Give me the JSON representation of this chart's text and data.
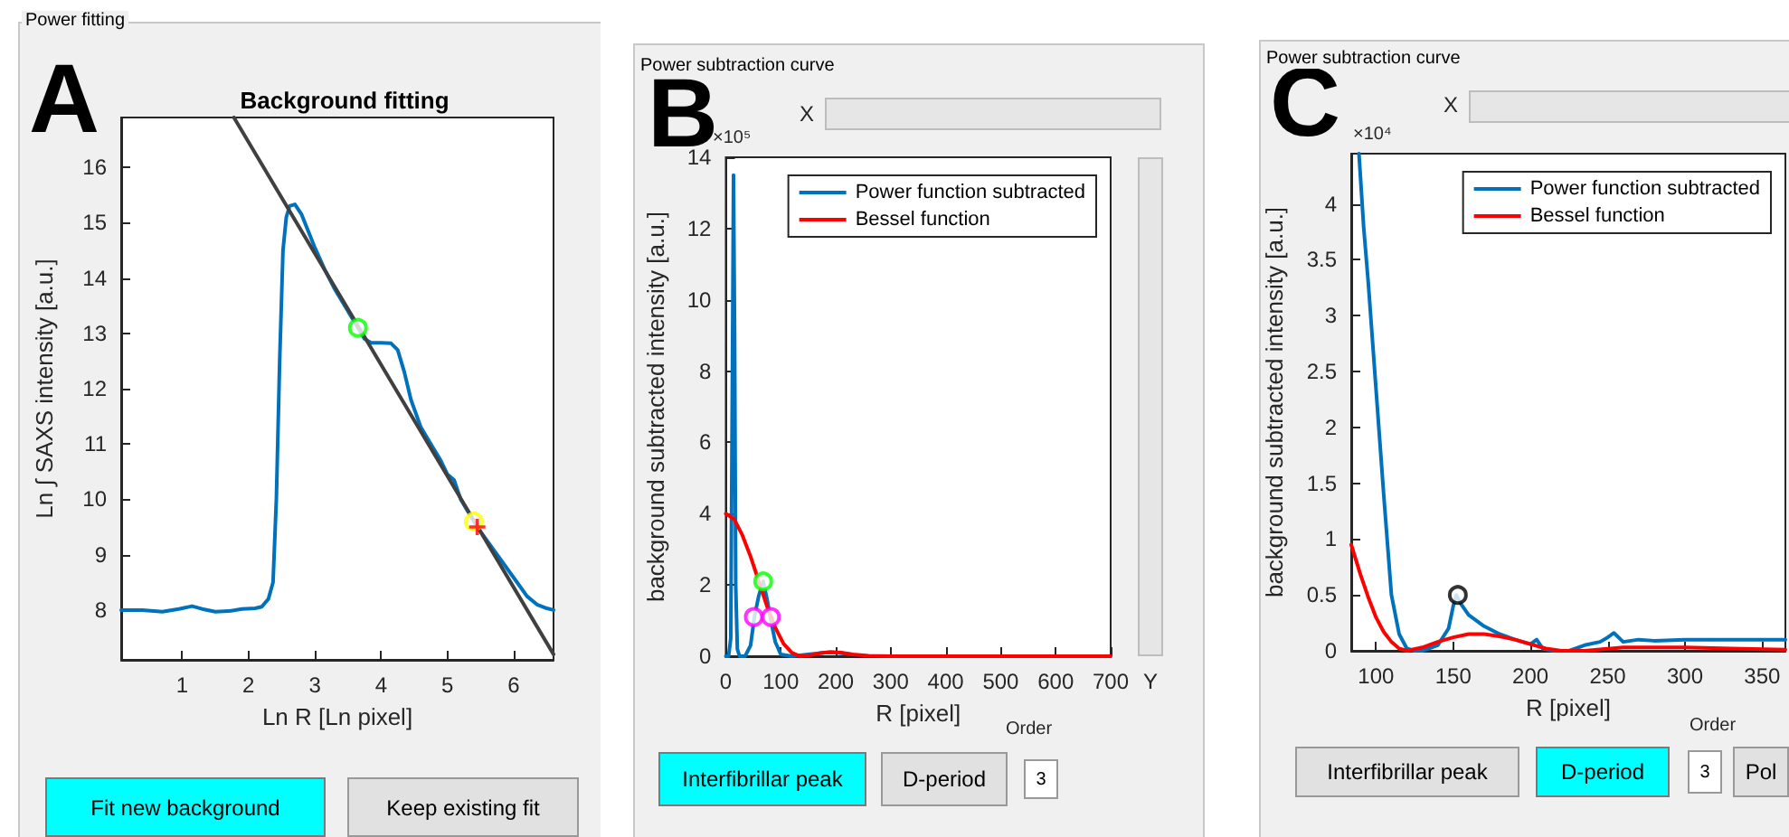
{
  "chart_data": [
    {
      "type": "line",
      "title": "Background fitting",
      "xlabel": "Ln R [Ln pixel]",
      "ylabel": "Ln ∫ SAXS intensity [a.u.]",
      "xlim": [
        0.08,
        6.6
      ],
      "ylim": [
        7.1,
        16.9
      ],
      "xticks": [
        1,
        2,
        3,
        4,
        5,
        6
      ],
      "yticks": [
        8,
        9,
        10,
        11,
        12,
        13,
        14,
        15,
        16
      ],
      "grid": false,
      "legend": false,
      "marker": "none",
      "annotations": [
        "A",
        "Power fitting",
        "Fit new background",
        "Keep existing fit"
      ],
      "series": [
        {
          "color": "#0072bd",
          "x": [
            0.08,
            0.4,
            0.7,
            0.95,
            1.15,
            1.3,
            1.5,
            1.7,
            1.9,
            2.1,
            2.2,
            2.3,
            2.37,
            2.42,
            2.47,
            2.52,
            2.57,
            2.62,
            2.7,
            2.8,
            2.9,
            3.0,
            3.15,
            3.3,
            3.5,
            3.65,
            3.75,
            3.85,
            4.0,
            4.15,
            4.25,
            4.35,
            4.45,
            4.6,
            4.75,
            4.9,
            5.0,
            5.1,
            5.2,
            5.3,
            5.45,
            5.6,
            5.75,
            5.9,
            6.05,
            6.2,
            6.35,
            6.5,
            6.6
          ],
          "values": [
            8.0,
            8.0,
            7.97,
            8.02,
            8.07,
            8.02,
            7.97,
            7.98,
            8.02,
            8.03,
            8.06,
            8.2,
            8.5,
            10.0,
            12.5,
            14.5,
            15.1,
            15.3,
            15.33,
            15.15,
            14.85,
            14.55,
            14.15,
            13.8,
            13.4,
            13.1,
            12.9,
            12.83,
            12.83,
            12.82,
            12.7,
            12.3,
            11.8,
            11.3,
            11.0,
            10.7,
            10.45,
            10.35,
            10.0,
            9.8,
            9.5,
            9.25,
            9.0,
            8.75,
            8.5,
            8.25,
            8.1,
            8.03,
            8.0
          ]
        },
        {
          "color": "#404040",
          "x": [
            1.78,
            6.6
          ],
          "values": [
            16.9,
            7.2
          ]
        },
        {
          "type": "scatter",
          "marker": "circle",
          "color": "#00ff00",
          "x": [
            3.65
          ],
          "values": [
            13.1
          ]
        },
        {
          "type": "scatter",
          "marker": "circle",
          "color": "#ffff00",
          "x": [
            5.4
          ],
          "values": [
            9.6
          ]
        },
        {
          "type": "scatter",
          "marker": "cross",
          "color": "#ff0000",
          "x": [
            5.45
          ],
          "values": [
            9.5
          ]
        }
      ]
    },
    {
      "type": "line",
      "xlabel": "R [pixel]",
      "ylabel": "background subtracted intensity [a.u.]",
      "xlim": [
        0,
        700
      ],
      "ylim": [
        0,
        14
      ],
      "xticks": [
        0,
        100,
        200,
        300,
        400,
        500,
        600,
        700
      ],
      "yticks": [
        0,
        2,
        4,
        6,
        8,
        10,
        12,
        14
      ],
      "grid": false,
      "legend": "top right",
      "marker": "none",
      "annotations": [
        "B",
        "Power subtraction curve",
        "X",
        "Y",
        "×10⁵",
        "Interfibrillar peak",
        "D-period",
        "Order",
        "3"
      ],
      "series": [
        {
          "name": "Power function subtracted",
          "color": "#0072bd",
          "x": [
            0,
            5,
            9,
            12,
            14,
            16,
            18,
            21,
            25,
            35,
            45,
            52,
            60,
            68,
            75,
            82,
            90,
            100,
            120,
            150,
            180,
            200,
            230
          ],
          "values": [
            0,
            0,
            0.5,
            8,
            13.5,
            9,
            2,
            0.2,
            0,
            0,
            0.3,
            1.1,
            1.7,
            2.1,
            1.6,
            1.0,
            0.4,
            0.05,
            0,
            0.05,
            0.1,
            0.1,
            0.05
          ]
        },
        {
          "name": "Bessel function",
          "color": "#ff0000",
          "x": [
            0,
            15,
            30,
            45,
            60,
            75,
            90,
            105,
            120,
            135,
            150,
            170,
            190,
            210,
            230,
            260,
            300,
            400,
            500,
            600,
            700
          ],
          "values": [
            4,
            3.85,
            3.4,
            2.8,
            2.1,
            1.4,
            0.8,
            0.35,
            0.1,
            0,
            0.02,
            0.08,
            0.12,
            0.1,
            0.05,
            0.01,
            0,
            0,
            0,
            0,
            0
          ]
        },
        {
          "type": "scatter",
          "marker": "circle",
          "color": "#00ff00",
          "x": [
            68
          ],
          "values": [
            2.1
          ]
        },
        {
          "type": "scatter",
          "marker": "circle",
          "color": "#ff00ff",
          "x": [
            51,
            82
          ],
          "values": [
            1.1,
            1.1
          ]
        }
      ]
    },
    {
      "type": "line",
      "xlabel": "R [pixel]",
      "ylabel": "background subtracted intensity [a.u.]",
      "xlim": [
        84,
        365
      ],
      "ylim": [
        0,
        4.45
      ],
      "xticks": [
        100,
        150,
        200,
        250,
        300,
        350
      ],
      "yticks": [
        0,
        0.5,
        1,
        1.5,
        2,
        2.5,
        3,
        3.5,
        4
      ],
      "grid": false,
      "legend": "top right",
      "marker": "none",
      "annotations": [
        "C",
        "Power subtraction curve",
        "X",
        "×10⁴",
        "Interfibrillar peak",
        "D-period",
        "Order",
        "3",
        "Pol"
      ],
      "series": [
        {
          "name": "Power function subtracted",
          "color": "#0072bd",
          "x": [
            89,
            92,
            95,
            100,
            105,
            110,
            115,
            120,
            125,
            130,
            140,
            147,
            150,
            152,
            155,
            160,
            170,
            180,
            190,
            200,
            204,
            208,
            215,
            225,
            235,
            245,
            250,
            254,
            260,
            270,
            280,
            300,
            320,
            340,
            365
          ],
          "values": [
            4.45,
            3.8,
            3.3,
            2.35,
            1.4,
            0.5,
            0.15,
            0.02,
            0,
            0,
            0.05,
            0.2,
            0.4,
            0.5,
            0.42,
            0.32,
            0.22,
            0.15,
            0.1,
            0.06,
            0.1,
            0.02,
            0,
            0,
            0.05,
            0.08,
            0.12,
            0.16,
            0.08,
            0.1,
            0.09,
            0.1,
            0.1,
            0.1,
            0.1
          ]
        },
        {
          "name": "Bessel function",
          "color": "#ff0000",
          "x": [
            84,
            90,
            95,
            100,
            105,
            110,
            115,
            120,
            130,
            140,
            150,
            160,
            170,
            180,
            190,
            200,
            210,
            220,
            235,
            260,
            300,
            330,
            365
          ],
          "values": [
            0.95,
            0.68,
            0.48,
            0.3,
            0.17,
            0.08,
            0.02,
            0,
            0.03,
            0.08,
            0.12,
            0.15,
            0.15,
            0.13,
            0.1,
            0.06,
            0.02,
            0,
            0,
            0.03,
            0.03,
            0.02,
            0.01
          ]
        },
        {
          "type": "scatter",
          "marker": "circle",
          "color": "#000000",
          "x": [
            153
          ],
          "values": [
            0.5
          ]
        }
      ]
    }
  ]
}
